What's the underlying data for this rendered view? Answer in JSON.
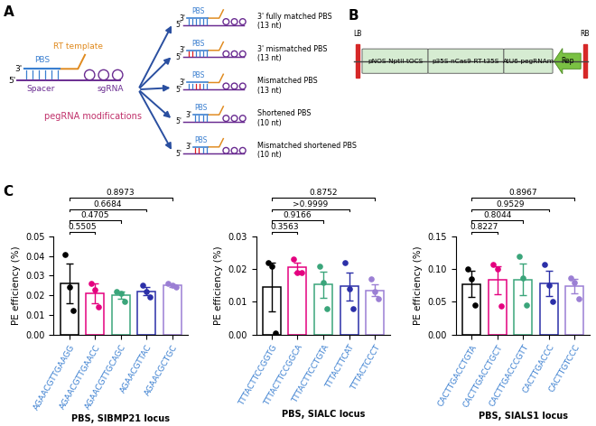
{
  "panel_a": {
    "label": "A",
    "heading": "pegRNA modifications",
    "main_labels": {
      "pbs": "PBS",
      "rt": "RT template",
      "spacer": "Spacer",
      "sgrna": "sgRNA",
      "five": "5'",
      "three": "3'"
    },
    "variants": [
      "3' fully matched PBS\n(13 nt)",
      "3' mismatched PBS\n(13 nt)",
      "Mismatched PBS\n(13 nt)",
      "Shortened PBS\n(10 nt)",
      "Mismatched shortened PBS\n(10 nt)"
    ]
  },
  "panel_b": {
    "label": "B",
    "elements": [
      "LB",
      "pNOS-NptII-tOCS",
      "p35S-nCas9-RT-t35S",
      "AtU6-pegRNAm",
      "Rep",
      "RB"
    ]
  },
  "panel_c": {
    "label": "C"
  },
  "chart_data": [
    {
      "type": "bar",
      "xlabel": "PBS, SlBMP21 locus",
      "ylabel": "PE efficiency (%)",
      "categories": [
        "AGAACGTTGAAGG",
        "AGAACGTTGAACC",
        "AGAACGTTGCAGC",
        "AGAACGTTAC",
        "AGAACGCTGC"
      ],
      "values": [
        0.026,
        0.021,
        0.02,
        0.022,
        0.025
      ],
      "errors": [
        0.01,
        0.005,
        0.002,
        0.002,
        0.0007
      ],
      "points": [
        [
          0.041,
          0.024,
          0.012
        ],
        [
          0.026,
          0.023,
          0.014
        ],
        [
          0.022,
          0.021,
          0.017
        ],
        [
          0.025,
          0.022,
          0.019
        ],
        [
          0.026,
          0.025,
          0.024
        ]
      ],
      "colors": [
        "#000000",
        "#e4007f",
        "#3aa57a",
        "#2b2fa8",
        "#9b7fd4"
      ],
      "ylim": [
        0,
        0.05
      ],
      "yticks": [
        {
          "value": 0,
          "label": "0.00"
        },
        {
          "value": 0.01,
          "label": "0.01"
        },
        {
          "value": 0.02,
          "label": "0.02"
        },
        {
          "value": 0.03,
          "label": "0.03"
        },
        {
          "value": 0.04,
          "label": "0.04"
        },
        {
          "value": 0.05,
          "label": "0.05"
        }
      ],
      "comparisons": [
        {
          "from": "AGAACGTTGAAGG",
          "to": "AGAACGTTGAACC",
          "label": "0.5505"
        },
        {
          "from": "AGAACGTTGAAGG",
          "to": "AGAACGTTGCAGC",
          "label": "0.4705"
        },
        {
          "from": "AGAACGTTGAAGG",
          "to": "AGAACGTTAC",
          "label": "0.6684"
        },
        {
          "from": "AGAACGTTGAAGG",
          "to": "AGAACGCTGC",
          "label": "0.8973"
        }
      ]
    },
    {
      "type": "bar",
      "xlabel": "PBS, SlALC locus",
      "ylabel": "PE efficiency (%)",
      "categories": [
        "TTTACTTCCGGTG",
        "TTTACTTCCGGCA",
        "TTTACTTCCTGTA",
        "TTTACTTCAT",
        "TTTACTCCCT"
      ],
      "values": [
        0.0145,
        0.0205,
        0.0153,
        0.0147,
        0.0135
      ],
      "errors": [
        0.0075,
        0.0015,
        0.004,
        0.0042,
        0.0018
      ],
      "points": [
        [
          0.022,
          0.021,
          0.0005
        ],
        [
          0.023,
          0.019,
          0.019
        ],
        [
          0.021,
          0.016,
          0.008
        ],
        [
          0.022,
          0.014,
          0.008
        ],
        [
          0.017,
          0.013,
          0.011
        ]
      ],
      "colors": [
        "#000000",
        "#e4007f",
        "#3aa57a",
        "#2b2fa8",
        "#9b7fd4"
      ],
      "ylim": [
        0,
        0.03
      ],
      "yticks": [
        {
          "value": 0,
          "label": "0.00"
        },
        {
          "value": 0.01,
          "label": "0.01"
        },
        {
          "value": 0.02,
          "label": "0.02"
        },
        {
          "value": 0.03,
          "label": "0.03"
        }
      ],
      "comparisons": [
        {
          "from": "TTTACTTCCGGTG",
          "to": "TTTACTTCCGGCA",
          "label": "0.3563"
        },
        {
          "from": "TTTACTTCCGGTG",
          "to": "TTTACTTCCTGTA",
          "label": "0.9166"
        },
        {
          "from": "TTTACTTCCGGTG",
          "to": "TTTACTTCAT",
          "label": ">0.9999"
        },
        {
          "from": "TTTACTTCCGGTG",
          "to": "TTTACTCCCT",
          "label": "0.8752"
        }
      ]
    },
    {
      "type": "bar",
      "xlabel": "PBS, SlALS1 locus",
      "ylabel": "PE efficiency (%)",
      "categories": [
        "CACTTGACCTGTA",
        "CACTTGACCTGCT",
        "CACTTGACCCGTT",
        "CACTTGACCC",
        "CACTTGTCCC"
      ],
      "values": [
        0.077,
        0.083,
        0.084,
        0.078,
        0.074
      ],
      "errors": [
        0.02,
        0.022,
        0.024,
        0.019,
        0.011
      ],
      "points": [
        [
          0.1,
          0.085,
          0.045
        ],
        [
          0.107,
          0.1,
          0.043
        ],
        [
          0.12,
          0.087,
          0.045
        ],
        [
          0.107,
          0.075,
          0.05
        ],
        [
          0.087,
          0.08,
          0.055
        ]
      ],
      "colors": [
        "#000000",
        "#e4007f",
        "#3aa57a",
        "#2b2fa8",
        "#9b7fd4"
      ],
      "ylim": [
        0,
        0.15
      ],
      "yticks": [
        {
          "value": 0,
          "label": "0.00"
        },
        {
          "value": 0.05,
          "label": "0.05"
        },
        {
          "value": 0.1,
          "label": "0.10"
        },
        {
          "value": 0.15,
          "label": "0.15"
        }
      ],
      "comparisons": [
        {
          "from": "CACTTGACCTGTA",
          "to": "CACTTGACCTGCT",
          "label": "0.8227"
        },
        {
          "from": "CACTTGACCTGTA",
          "to": "CACTTGACCCGTT",
          "label": "0.8044"
        },
        {
          "from": "CACTTGACCTGTA",
          "to": "CACTTGACCC",
          "label": "0.9529"
        },
        {
          "from": "CACTTGACCTGTA",
          "to": "CACTTGTCCC",
          "label": "0.8967"
        }
      ]
    }
  ]
}
